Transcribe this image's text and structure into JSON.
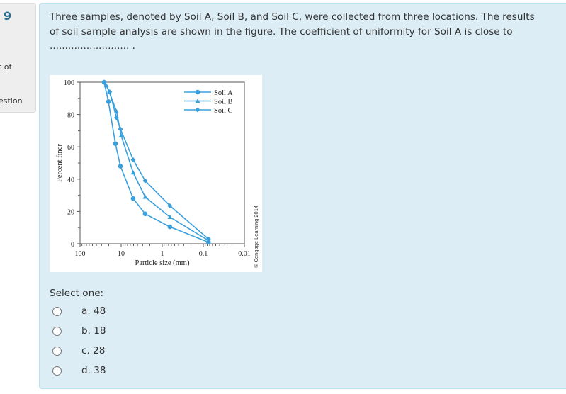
{
  "info": {
    "question_number": "9",
    "line1": "ut of",
    "line2": "uestion"
  },
  "question": {
    "text": "Three samples, denoted by Soil A, Soil B, and Soil C, were collected from three locations. The results of soil sample analysis are shown in the figure. The coefficient of uniformity for Soil A is close to .......................... ."
  },
  "figure": {
    "credit": "© Cengage Learning 2014"
  },
  "answers": {
    "prompt": "Select one:",
    "options": [
      {
        "label": "a. 48"
      },
      {
        "label": "b. 18"
      },
      {
        "label": "c. 28"
      },
      {
        "label": "d. 38"
      }
    ]
  },
  "colors": {
    "panel_bg": "#dcedf6",
    "panel_border": "#b8e0ee",
    "series": "#3aa0dc",
    "question_number": "#2b6e8e"
  },
  "chart_data": {
    "type": "line",
    "title": "",
    "xlabel": "Particle size (mm)",
    "ylabel": "Percent finer",
    "x_scale": "log",
    "x_reversed": true,
    "xlim": [
      100,
      0.01
    ],
    "ylim": [
      0,
      100
    ],
    "x_tick_labels": [
      "100",
      "10",
      "1",
      "0.1",
      "0.01"
    ],
    "y_tick_labels": [
      "0",
      "20",
      "40",
      "60",
      "80",
      "100"
    ],
    "grid": false,
    "legend_position": "upper right",
    "series": [
      {
        "name": "Soil A",
        "marker": "circle",
        "x": [
          26,
          20.4,
          13.8,
          10.4,
          5.1,
          2.6,
          0.65,
          0.075
        ],
        "y": [
          100,
          88,
          62,
          48,
          28,
          18.5,
          10.5,
          1
        ]
      },
      {
        "name": "Soil B",
        "marker": "triangle",
        "x": [
          23,
          19.5,
          13,
          10,
          5.1,
          2.6,
          0.65,
          0.075
        ],
        "y": [
          98,
          94,
          82,
          67,
          44,
          29,
          16.5,
          2
        ]
      },
      {
        "name": "Soil C",
        "marker": "diamond",
        "x": [
          26,
          19,
          13,
          10.4,
          5.1,
          2.6,
          0.65,
          0.075
        ],
        "y": [
          100,
          94,
          78,
          71,
          52,
          39,
          23.5,
          3
        ]
      }
    ]
  }
}
